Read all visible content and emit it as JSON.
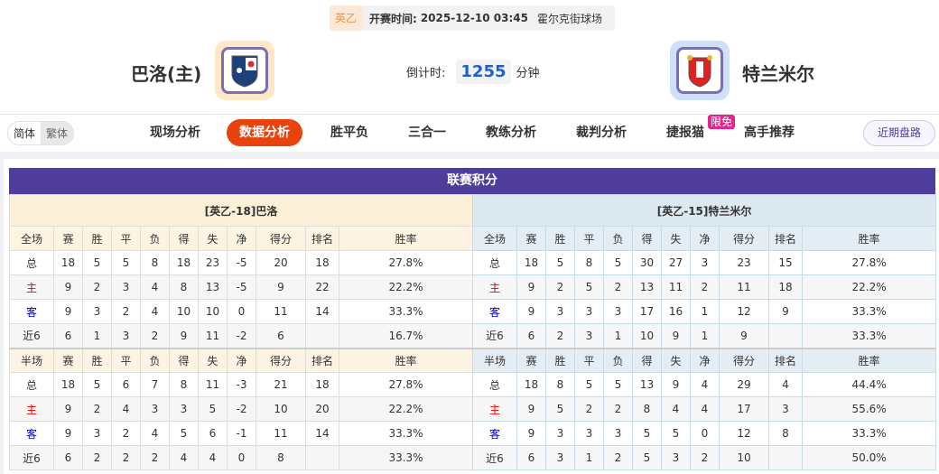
{
  "match": {
    "league": "英乙",
    "start_label": "开赛时间:",
    "start_time": "2025-12-10 03:45",
    "venue": "霍尔克街球场",
    "home": "巴洛(主)",
    "away": "特兰米尔",
    "countdown_label": "倒计时:",
    "countdown": "1255",
    "countdown_unit": "分钟"
  },
  "lang": {
    "simplified": "简体",
    "traditional": "繁体"
  },
  "nav": {
    "items": [
      "现场分析",
      "数据分析",
      "胜平负",
      "三合一",
      "教练分析",
      "裁判分析",
      "捷报猫",
      "高手推荐"
    ],
    "active": "数据分析",
    "badge": "限免",
    "recent": "近期盘路"
  },
  "colors": {
    "accent": "#e8430c",
    "title_bar": "#4f3d9c",
    "home_label": "#ee0000",
    "away_label": "#0000cc"
  },
  "standings": {
    "title": "联赛积分",
    "columns": [
      "赛",
      "胜",
      "平",
      "负",
      "得",
      "失",
      "净",
      "得分",
      "排名",
      "胜率"
    ],
    "home": {
      "caption": "[英乙-18]巴洛",
      "full": {
        "label": "全场",
        "rows": [
          [
            "总",
            "18",
            "5",
            "5",
            "8",
            "18",
            "23",
            "-5",
            "20",
            "18",
            "27.8%"
          ],
          [
            "主",
            "9",
            "2",
            "3",
            "4",
            "8",
            "13",
            "-5",
            "9",
            "22",
            "22.2%"
          ],
          [
            "客",
            "9",
            "3",
            "2",
            "4",
            "10",
            "10",
            "0",
            "11",
            "14",
            "33.3%"
          ],
          [
            "近6",
            "6",
            "1",
            "3",
            "2",
            "9",
            "11",
            "-2",
            "6",
            "",
            "16.7%"
          ]
        ]
      },
      "half": {
        "label": "半场",
        "rows": [
          [
            "总",
            "18",
            "5",
            "6",
            "7",
            "8",
            "11",
            "-3",
            "21",
            "18",
            "27.8%"
          ],
          [
            "主",
            "9",
            "2",
            "4",
            "3",
            "3",
            "5",
            "-2",
            "10",
            "20",
            "22.2%"
          ],
          [
            "客",
            "9",
            "3",
            "2",
            "4",
            "5",
            "6",
            "-1",
            "11",
            "14",
            "33.3%"
          ],
          [
            "近6",
            "6",
            "2",
            "2",
            "2",
            "4",
            "4",
            "0",
            "8",
            "",
            "33.3%"
          ]
        ]
      }
    },
    "away": {
      "caption": "[英乙-15]特兰米尔",
      "full": {
        "label": "全场",
        "rows": [
          [
            "总",
            "18",
            "5",
            "8",
            "5",
            "30",
            "27",
            "3",
            "23",
            "15",
            "27.8%"
          ],
          [
            "主",
            "9",
            "2",
            "5",
            "2",
            "13",
            "11",
            "2",
            "11",
            "18",
            "22.2%"
          ],
          [
            "客",
            "9",
            "3",
            "3",
            "3",
            "17",
            "16",
            "1",
            "12",
            "9",
            "33.3%"
          ],
          [
            "近6",
            "6",
            "2",
            "3",
            "1",
            "10",
            "9",
            "1",
            "9",
            "",
            "33.3%"
          ]
        ]
      },
      "half": {
        "label": "半场",
        "rows": [
          [
            "总",
            "18",
            "8",
            "5",
            "5",
            "13",
            "9",
            "4",
            "29",
            "4",
            "44.4%"
          ],
          [
            "主",
            "9",
            "5",
            "2",
            "2",
            "8",
            "4",
            "4",
            "17",
            "3",
            "55.6%"
          ],
          [
            "客",
            "9",
            "3",
            "3",
            "3",
            "5",
            "5",
            "0",
            "12",
            "8",
            "33.3%"
          ],
          [
            "近6",
            "6",
            "3",
            "1",
            "2",
            "5",
            "3",
            "2",
            "10",
            "",
            "50.0%"
          ]
        ]
      }
    }
  }
}
